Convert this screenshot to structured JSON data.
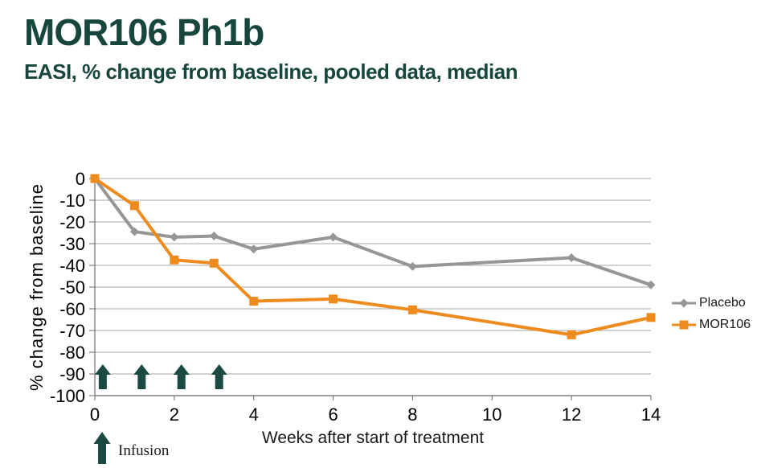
{
  "header": {
    "title": "MOR106 Ph1b",
    "subtitle": "EASI, % change from baseline, pooled data, median"
  },
  "chart_data": {
    "type": "line",
    "x": [
      0,
      1,
      2,
      3,
      4,
      6,
      8,
      12,
      14
    ],
    "series": [
      {
        "name": "Placebo",
        "marker": "diamond",
        "color": "#969696",
        "values": [
          0,
          -24.5,
          -27,
          -26.5,
          -32.5,
          -27,
          -40.5,
          -36.5,
          -49
        ]
      },
      {
        "name": "MOR106",
        "marker": "square",
        "color": "#EE8B1E",
        "values": [
          0,
          -12.5,
          -37.5,
          -39,
          -56.5,
          -55.5,
          -60.5,
          -72,
          -64
        ]
      }
    ],
    "title": "",
    "xlabel": "Weeks after start of treatment",
    "ylabel": "% change from baseline",
    "xlim": [
      0,
      14
    ],
    "ylim": [
      -100,
      0
    ],
    "x_ticks": [
      0,
      2,
      4,
      6,
      8,
      10,
      12,
      14
    ],
    "y_ticks": [
      0,
      -10,
      -20,
      -30,
      -40,
      -50,
      -60,
      -70,
      -80,
      -90,
      -100
    ],
    "grid": "horizontal",
    "legend_position": "right",
    "annotations": {
      "infusion_arrow_weeks": [
        0.2,
        1.18,
        2.18,
        3.13
      ],
      "infusion_label": "Infusion",
      "arrow_color": "#1A4A42"
    }
  },
  "colors": {
    "title_text": "#17463D",
    "axis_text": "#000000",
    "gridline": "#A6A6A6",
    "axis_line": "#808080"
  }
}
